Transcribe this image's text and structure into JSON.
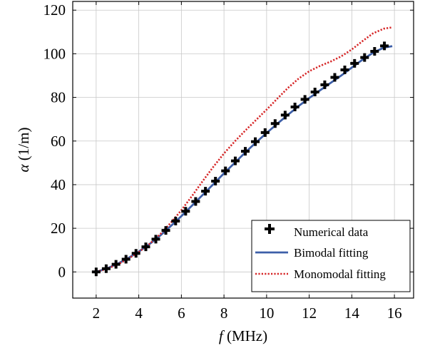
{
  "chart_data": {
    "type": "line",
    "xlabel_var": "f",
    "xlabel_unit": " (MHz)",
    "ylabel_var": "α",
    "ylabel_unit": " (1/m)",
    "xlim": [
      0.9,
      16.9
    ],
    "ylim": [
      -12,
      124
    ],
    "xticks": [
      2,
      4,
      6,
      8,
      10,
      12,
      14,
      16
    ],
    "yticks": [
      0,
      20,
      40,
      60,
      80,
      100,
      120
    ],
    "grid": true,
    "legend_position": "bottom-right",
    "series": [
      {
        "name": "Numerical data",
        "style": "markers",
        "color": "#000000",
        "x": [
          2.0,
          2.47,
          2.93,
          3.4,
          3.87,
          4.33,
          4.8,
          5.27,
          5.73,
          6.2,
          6.67,
          7.13,
          7.6,
          8.07,
          8.53,
          9.0,
          9.47,
          9.93,
          10.4,
          10.87,
          11.33,
          11.8,
          12.27,
          12.73,
          13.2,
          13.67,
          14.13,
          14.6,
          15.07,
          15.53
        ],
        "y": [
          0.0,
          1.5,
          3.5,
          5.8,
          8.5,
          11.5,
          15.0,
          19.0,
          23.3,
          27.8,
          32.3,
          37.0,
          41.6,
          46.3,
          50.9,
          55.3,
          59.7,
          63.9,
          68.0,
          71.9,
          75.6,
          79.1,
          82.5,
          85.8,
          89.2,
          92.6,
          95.6,
          98.3,
          101.1,
          103.6
        ]
      },
      {
        "name": "Bimodal fitting",
        "style": "solid",
        "color": "#3d5fa8",
        "x": [
          2.0,
          2.5,
          3.0,
          3.5,
          4.0,
          4.5,
          5.0,
          5.5,
          6.0,
          6.5,
          7.0,
          7.5,
          8.0,
          8.5,
          9.0,
          9.5,
          10.0,
          10.5,
          11.0,
          11.5,
          12.0,
          12.5,
          13.0,
          13.5,
          14.0,
          14.5,
          15.0,
          15.5,
          15.9
        ],
        "y": [
          0.0,
          1.6,
          3.7,
          6.3,
          9.3,
          12.7,
          16.6,
          21.0,
          25.6,
          30.4,
          35.3,
          40.2,
          45.2,
          50.0,
          54.8,
          59.3,
          63.7,
          67.9,
          72.0,
          76.0,
          79.7,
          83.2,
          86.6,
          90.0,
          93.7,
          97.3,
          100.5,
          102.8,
          103.5
        ]
      },
      {
        "name": "Monomodal fitting",
        "style": "dotted",
        "color": "#d62728",
        "x": [
          2.0,
          2.5,
          3.0,
          3.5,
          4.0,
          4.5,
          5.0,
          5.5,
          6.0,
          6.5,
          7.0,
          7.5,
          8.0,
          8.5,
          9.0,
          9.5,
          10.0,
          10.5,
          11.0,
          11.5,
          12.0,
          12.5,
          13.0,
          13.5,
          14.0,
          14.5,
          15.0,
          15.5,
          15.9
        ],
        "y": [
          0.0,
          1.4,
          3.4,
          6.0,
          9.1,
          12.8,
          17.2,
          22.5,
          28.3,
          34.8,
          41.6,
          48.2,
          54.3,
          59.8,
          64.8,
          69.6,
          74.4,
          79.4,
          84.3,
          88.6,
          92.0,
          94.4,
          96.4,
          98.8,
          102.0,
          105.8,
          109.4,
          111.5,
          112.1
        ]
      }
    ]
  }
}
